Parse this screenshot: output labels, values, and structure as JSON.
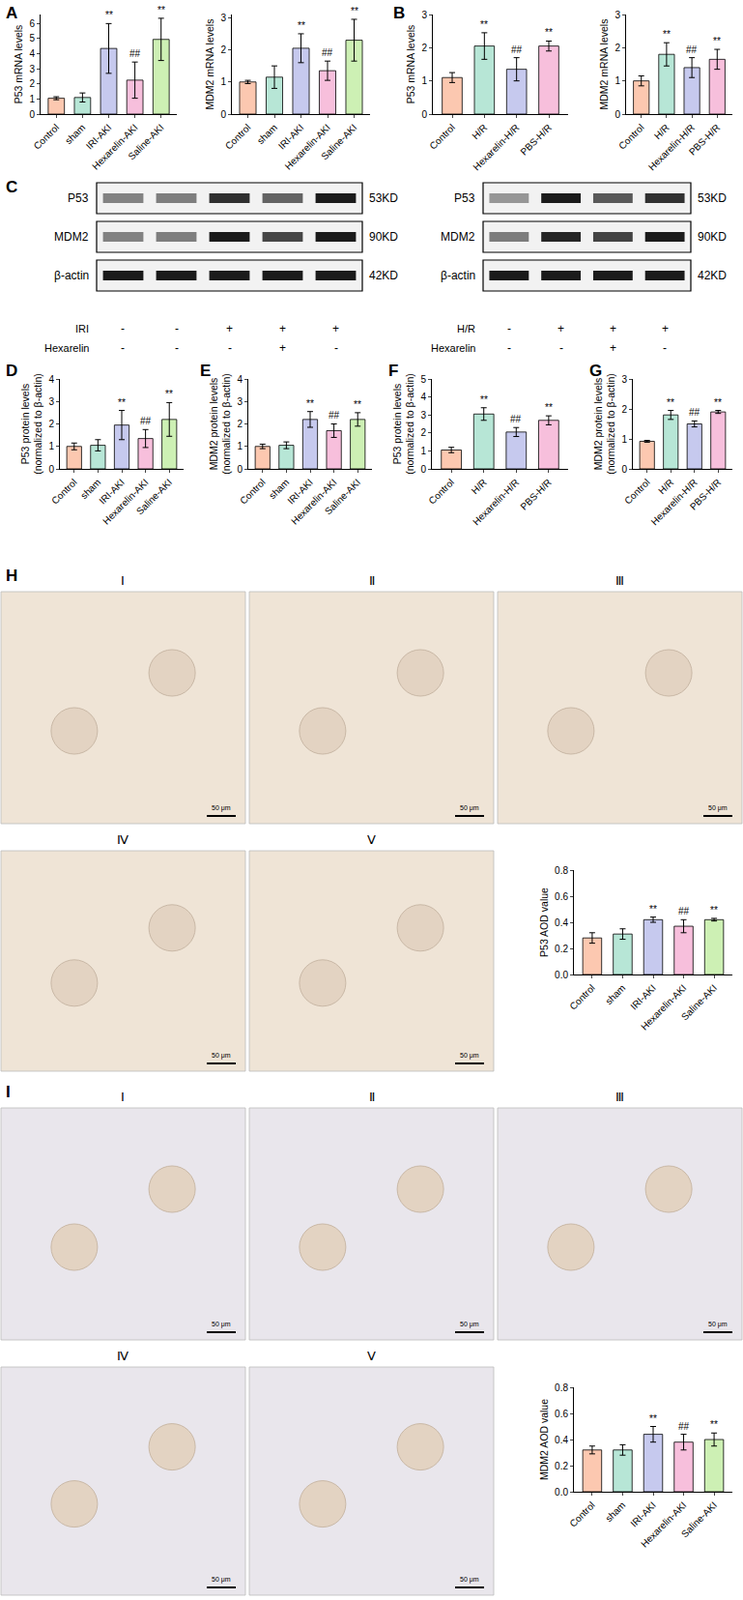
{
  "chart_data": [
    {
      "panel": "A",
      "type": "bar",
      "y_label": "P53 mRNA levels",
      "categories": [
        "Control",
        "sham",
        "IRI-AKI",
        "Hexarelin-AKI",
        "Saline-AKI"
      ],
      "values": [
        1.05,
        1.1,
        4.35,
        2.25,
        4.95
      ],
      "errors": [
        0.1,
        0.3,
        1.65,
        1.2,
        1.4
      ],
      "marks": [
        null,
        null,
        "**",
        "##",
        "**"
      ],
      "colors": [
        "#fcc8b0",
        "#b7e6d6",
        "#c6c9ee",
        "#f7bfdc",
        "#cdf0b4"
      ],
      "ylim": [
        0,
        6.6
      ],
      "yticks": [
        0,
        1,
        2,
        3,
        4,
        5,
        6
      ]
    },
    {
      "type": "bar",
      "y_label": "MDM2 mRNA levels",
      "categories": [
        "Control",
        "sham",
        "IRI-AKI",
        "Hexarelin-AKI",
        "Saline-AKI"
      ],
      "values": [
        1.0,
        1.15,
        2.05,
        1.35,
        2.3
      ],
      "errors": [
        0.05,
        0.35,
        0.45,
        0.3,
        0.65
      ],
      "marks": [
        null,
        null,
        "**",
        "##",
        "**"
      ],
      "colors": [
        "#fcc8b0",
        "#b7e6d6",
        "#c6c9ee",
        "#f7bfdc",
        "#cdf0b4"
      ],
      "ylim": [
        0,
        3.1
      ],
      "yticks": [
        0,
        1,
        2,
        3
      ]
    },
    {
      "panel": "B",
      "type": "bar",
      "y_label": "P53 mRNA levels",
      "categories": [
        "Control",
        "H/R",
        "Hexarelin-H/R",
        "PBS-H/R"
      ],
      "values": [
        1.1,
        2.05,
        1.35,
        2.05
      ],
      "errors": [
        0.15,
        0.4,
        0.35,
        0.15
      ],
      "marks": [
        null,
        "**",
        "##",
        "**"
      ],
      "colors": [
        "#fcc8b0",
        "#b7e6d6",
        "#c6c9ee",
        "#f7bfdc"
      ],
      "ylim": [
        0,
        3
      ],
      "yticks": [
        0,
        1,
        2,
        3
      ]
    },
    {
      "type": "bar",
      "y_label": "MDM2 mRNA levels",
      "categories": [
        "Control",
        "H/R",
        "Hexarelin-H/R",
        "PBS-H/R"
      ],
      "values": [
        1.0,
        1.8,
        1.4,
        1.65
      ],
      "errors": [
        0.15,
        0.35,
        0.3,
        0.3
      ],
      "marks": [
        null,
        "**",
        "##",
        "**"
      ],
      "colors": [
        "#fcc8b0",
        "#b7e6d6",
        "#c6c9ee",
        "#f7bfdc"
      ],
      "ylim": [
        0,
        3
      ],
      "yticks": [
        0,
        1,
        2,
        3
      ]
    },
    {
      "panel": "D",
      "type": "bar",
      "y_label": "P53 protein levels\n(normalized to β-actin)",
      "categories": [
        "Control",
        "sham",
        "IRI-AKI",
        "Hexarelin-AKI",
        "Saline-AKI"
      ],
      "values": [
        1.0,
        1.05,
        1.95,
        1.35,
        2.2
      ],
      "errors": [
        0.15,
        0.25,
        0.65,
        0.4,
        0.75
      ],
      "marks": [
        null,
        null,
        "**",
        "##",
        "**"
      ],
      "colors": [
        "#fcc8b0",
        "#b7e6d6",
        "#c6c9ee",
        "#f7bfdc",
        "#cdf0b4"
      ],
      "ylim": [
        0,
        4
      ],
      "yticks": [
        0,
        1,
        2,
        3,
        4
      ]
    },
    {
      "panel": "E",
      "type": "bar",
      "y_label": "MDM2 protein levels\n(normalized to β-actin)",
      "categories": [
        "Control",
        "sham",
        "IRI-AKI",
        "Hexarelin-AKI",
        "Saline-AKI"
      ],
      "values": [
        1.0,
        1.05,
        2.2,
        1.7,
        2.2
      ],
      "errors": [
        0.1,
        0.15,
        0.35,
        0.3,
        0.3
      ],
      "marks": [
        null,
        null,
        "**",
        "##",
        "**"
      ],
      "colors": [
        "#fcc8b0",
        "#b7e6d6",
        "#c6c9ee",
        "#f7bfdc",
        "#cdf0b4"
      ],
      "ylim": [
        0,
        4
      ],
      "yticks": [
        0,
        1,
        2,
        3,
        4
      ]
    },
    {
      "panel": "F",
      "type": "bar",
      "y_label": "P53 protein levels\n(normalized to β-actin)",
      "categories": [
        "Control",
        "H/R",
        "Hexarelin-H/R",
        "PBS-H/R"
      ],
      "values": [
        1.05,
        3.05,
        2.05,
        2.7
      ],
      "errors": [
        0.15,
        0.35,
        0.25,
        0.25
      ],
      "marks": [
        null,
        "**",
        "##",
        "**"
      ],
      "colors": [
        "#fcc8b0",
        "#b7e6d6",
        "#c6c9ee",
        "#f7bfdc"
      ],
      "ylim": [
        0,
        5
      ],
      "yticks": [
        0,
        1,
        2,
        3,
        4,
        5
      ]
    },
    {
      "panel": "G",
      "type": "bar",
      "y_label": "MDM2 protein levels\n(normalized to β-actin)",
      "categories": [
        "Control",
        "H/R",
        "Hexarelin-H/R",
        "PBS-H/R"
      ],
      "values": [
        0.92,
        1.8,
        1.5,
        1.9
      ],
      "errors": [
        0.03,
        0.15,
        0.1,
        0.05
      ],
      "marks": [
        null,
        "**",
        "##",
        "**"
      ],
      "colors": [
        "#fcc8b0",
        "#b7e6d6",
        "#c6c9ee",
        "#f7bfdc"
      ],
      "ylim": [
        0,
        3
      ],
      "yticks": [
        0,
        1,
        2,
        3
      ]
    },
    {
      "type": "bar",
      "y_label": "P53 AOD value",
      "categories": [
        "Control",
        "sham",
        "IRI-AKI",
        "Hexarelin-AKI",
        "Saline-AKI"
      ],
      "values": [
        0.28,
        0.31,
        0.42,
        0.37,
        0.42
      ],
      "errors": [
        0.04,
        0.04,
        0.02,
        0.05,
        0.01
      ],
      "marks": [
        null,
        null,
        "**",
        "##",
        "**"
      ],
      "colors": [
        "#fcc8b0",
        "#b7e6d6",
        "#c6c9ee",
        "#f7bfdc",
        "#cdf0b4"
      ],
      "ylim": [
        0,
        0.8
      ],
      "yticks": [
        {
          "value": 0,
          "label": "0.0"
        },
        0.2,
        0.4,
        0.6,
        0.8
      ]
    },
    {
      "type": "bar",
      "y_label": "MDM2 AOD value",
      "categories": [
        "Control",
        "sham",
        "IRI-AKI",
        "Hexarelin-AKI",
        "Saline-AKI"
      ],
      "values": [
        0.32,
        0.32,
        0.44,
        0.38,
        0.4
      ],
      "errors": [
        0.03,
        0.04,
        0.06,
        0.06,
        0.05
      ],
      "marks": [
        null,
        null,
        "**",
        "##",
        "**"
      ],
      "colors": [
        "#fcc8b0",
        "#b7e6d6",
        "#c6c9ee",
        "#f7bfdc",
        "#cdf0b4"
      ],
      "ylim": [
        0,
        0.8
      ],
      "yticks": [
        {
          "value": 0,
          "label": "0.0"
        },
        0.2,
        0.4,
        0.6,
        0.8
      ]
    }
  ],
  "blots": [
    {
      "panel": "C",
      "proteins": [
        {
          "name": "P53",
          "size": "53KD"
        },
        {
          "name": "MDM2",
          "size": "90KD"
        },
        {
          "name": "β-actin",
          "size": "42KD"
        }
      ],
      "conditions": [
        {
          "name": "IRI",
          "signs": [
            "-",
            "-",
            "+",
            "+",
            "+"
          ]
        },
        {
          "name": "Hexarelin",
          "signs": [
            "-",
            "-",
            "-",
            "+",
            "-"
          ]
        }
      ]
    },
    {
      "proteins": [
        {
          "name": "P53",
          "size": "53KD"
        },
        {
          "name": "MDM2",
          "size": "90KD"
        },
        {
          "name": "β-actin",
          "size": "42KD"
        }
      ],
      "conditions": [
        {
          "name": "H/R",
          "signs": [
            "-",
            "+",
            "+",
            "+"
          ]
        },
        {
          "name": "Hexarelin",
          "signs": [
            "-",
            "-",
            "+",
            "-"
          ]
        }
      ]
    }
  ],
  "micrographs": [
    {
      "panel": "H",
      "labels": [
        "Ⅰ",
        "Ⅱ",
        "Ⅲ",
        "Ⅳ",
        "Ⅴ"
      ],
      "scale_bar": "50 μm"
    },
    {
      "panel": "I",
      "labels": [
        "Ⅰ",
        "Ⅱ",
        "Ⅲ",
        "Ⅳ",
        "Ⅴ"
      ],
      "scale_bar": "50 μm"
    }
  ]
}
